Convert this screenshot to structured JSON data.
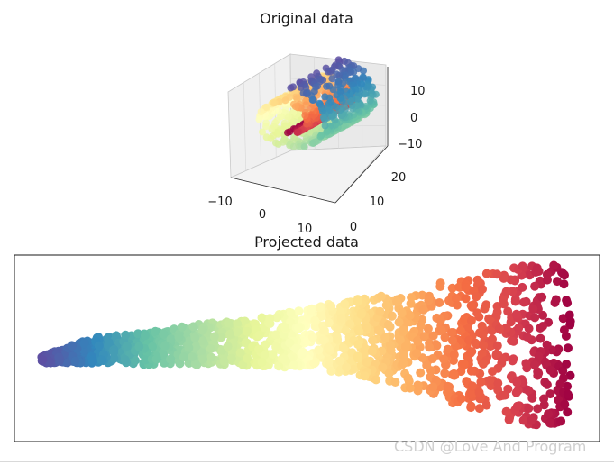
{
  "chart_data": [
    {
      "type": "scatter3d",
      "title": "Original data",
      "xticks": [
        "−10",
        "0",
        "10"
      ],
      "yticks": [
        "0",
        "10",
        "20"
      ],
      "zticks": [
        "10",
        "0",
        "−10"
      ],
      "colormap": "Spectral",
      "grid": true,
      "legend": "none",
      "description_shape": "swiss roll"
    },
    {
      "type": "scatter",
      "title": "Projected data",
      "colormap": "Spectral",
      "xticks": [],
      "yticks": [],
      "grid": false,
      "legend": "none",
      "shape_profile": {
        "x": [
          0.0,
          0.1,
          0.2,
          0.3,
          0.4,
          0.5,
          0.6,
          0.7,
          0.8,
          0.9,
          1.0
        ],
        "y_top": [
          0.44,
          0.55,
          0.58,
          0.63,
          0.66,
          0.72,
          0.78,
          0.84,
          0.9,
          0.97,
          1.0
        ],
        "y_bottom": [
          0.4,
          0.4,
          0.39,
          0.39,
          0.38,
          0.37,
          0.33,
          0.24,
          0.14,
          0.05,
          0.0
        ]
      }
    }
  ],
  "watermark": "CSDN @Love And Program"
}
